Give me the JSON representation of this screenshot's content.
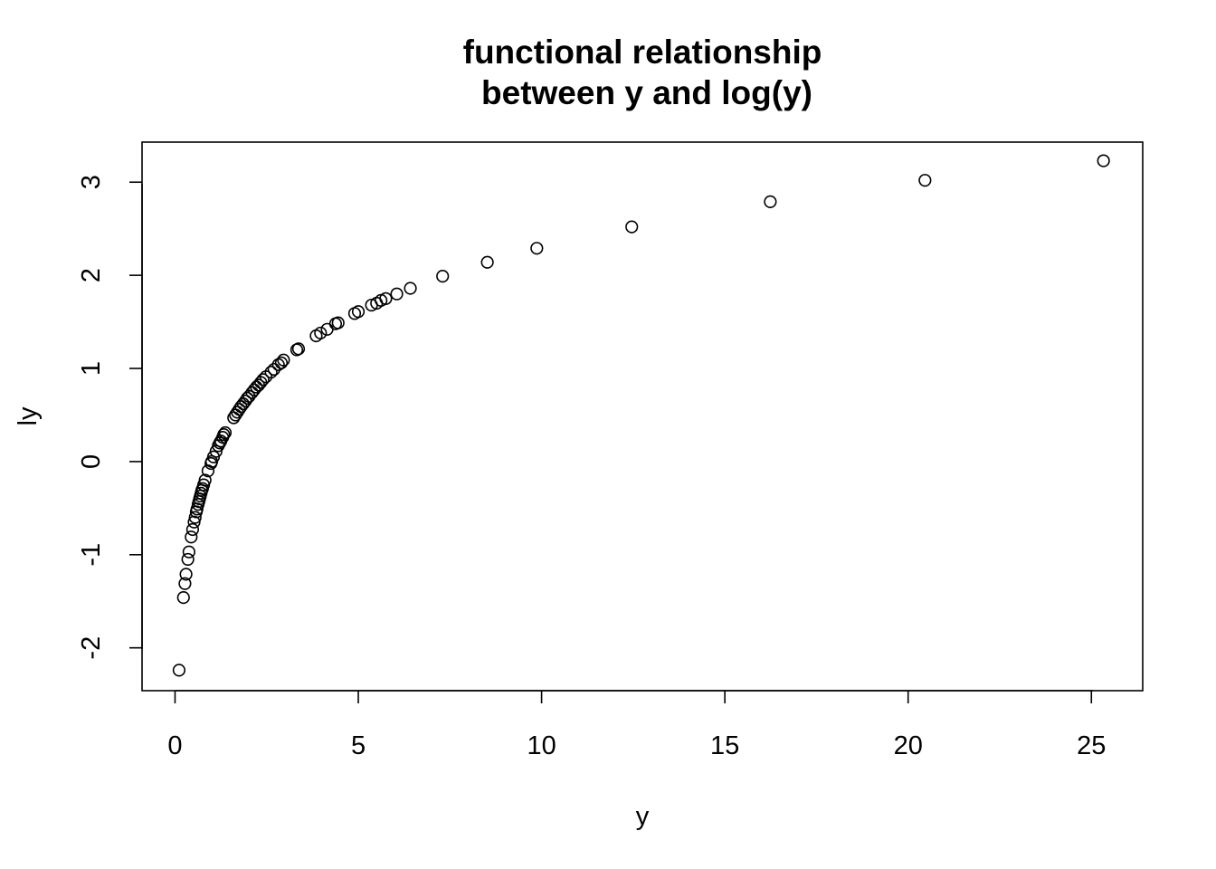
{
  "chart_data": {
    "type": "scatter",
    "title": [
      "functional relationship",
      "between y and log(y)"
    ],
    "xlabel": "y",
    "ylabel": "ly",
    "xlim": [
      -0.9,
      26.4
    ],
    "ylim": [
      -2.46,
      3.43
    ],
    "x_ticks": [
      0,
      5,
      10,
      15,
      20,
      25
    ],
    "y_ticks": [
      -2,
      -1,
      0,
      1,
      2,
      3
    ],
    "grid": false,
    "marker": "open-circle",
    "colors": {
      "point": "#000000",
      "frame": "#000000",
      "background": "#ffffff"
    },
    "points": [
      {
        "x": 0.11,
        "y": -2.24
      },
      {
        "x": 0.23,
        "y": -1.46
      },
      {
        "x": 0.27,
        "y": -1.31
      },
      {
        "x": 0.3,
        "y": -1.21
      },
      {
        "x": 0.35,
        "y": -1.05
      },
      {
        "x": 0.38,
        "y": -0.97
      },
      {
        "x": 0.44,
        "y": -0.81
      },
      {
        "x": 0.48,
        "y": -0.73
      },
      {
        "x": 0.52,
        "y": -0.65
      },
      {
        "x": 0.55,
        "y": -0.6
      },
      {
        "x": 0.58,
        "y": -0.54
      },
      {
        "x": 0.6,
        "y": -0.51
      },
      {
        "x": 0.63,
        "y": -0.46
      },
      {
        "x": 0.65,
        "y": -0.43
      },
      {
        "x": 0.67,
        "y": -0.4
      },
      {
        "x": 0.69,
        "y": -0.37
      },
      {
        "x": 0.71,
        "y": -0.34
      },
      {
        "x": 0.73,
        "y": -0.31
      },
      {
        "x": 0.75,
        "y": -0.29
      },
      {
        "x": 0.78,
        "y": -0.25
      },
      {
        "x": 0.82,
        "y": -0.2
      },
      {
        "x": 0.9,
        "y": -0.1
      },
      {
        "x": 0.98,
        "y": -0.02
      },
      {
        "x": 1.0,
        "y": 0.0
      },
      {
        "x": 1.05,
        "y": 0.05
      },
      {
        "x": 1.12,
        "y": 0.11
      },
      {
        "x": 1.18,
        "y": 0.17
      },
      {
        "x": 1.22,
        "y": 0.2
      },
      {
        "x": 1.25,
        "y": 0.22
      },
      {
        "x": 1.3,
        "y": 0.26
      },
      {
        "x": 1.33,
        "y": 0.29
      },
      {
        "x": 1.37,
        "y": 0.31
      },
      {
        "x": 1.6,
        "y": 0.47
      },
      {
        "x": 1.65,
        "y": 0.5
      },
      {
        "x": 1.7,
        "y": 0.53
      },
      {
        "x": 1.75,
        "y": 0.56
      },
      {
        "x": 1.8,
        "y": 0.59
      },
      {
        "x": 1.86,
        "y": 0.62
      },
      {
        "x": 1.92,
        "y": 0.65
      },
      {
        "x": 1.97,
        "y": 0.68
      },
      {
        "x": 2.02,
        "y": 0.7
      },
      {
        "x": 2.1,
        "y": 0.74
      },
      {
        "x": 2.16,
        "y": 0.77
      },
      {
        "x": 2.22,
        "y": 0.8
      },
      {
        "x": 2.28,
        "y": 0.82
      },
      {
        "x": 2.34,
        "y": 0.85
      },
      {
        "x": 2.4,
        "y": 0.88
      },
      {
        "x": 2.48,
        "y": 0.91
      },
      {
        "x": 2.62,
        "y": 0.96
      },
      {
        "x": 2.7,
        "y": 0.99
      },
      {
        "x": 2.82,
        "y": 1.04
      },
      {
        "x": 2.9,
        "y": 1.06
      },
      {
        "x": 2.96,
        "y": 1.09
      },
      {
        "x": 3.32,
        "y": 1.2
      },
      {
        "x": 3.37,
        "y": 1.21
      },
      {
        "x": 3.85,
        "y": 1.35
      },
      {
        "x": 3.97,
        "y": 1.38
      },
      {
        "x": 4.15,
        "y": 1.42
      },
      {
        "x": 4.38,
        "y": 1.48
      },
      {
        "x": 4.45,
        "y": 1.49
      },
      {
        "x": 4.9,
        "y": 1.59
      },
      {
        "x": 5.0,
        "y": 1.61
      },
      {
        "x": 5.36,
        "y": 1.68
      },
      {
        "x": 5.5,
        "y": 1.7
      },
      {
        "x": 5.62,
        "y": 1.73
      },
      {
        "x": 5.75,
        "y": 1.75
      },
      {
        "x": 6.05,
        "y": 1.8
      },
      {
        "x": 6.42,
        "y": 1.86
      },
      {
        "x": 7.3,
        "y": 1.99
      },
      {
        "x": 8.52,
        "y": 2.14
      },
      {
        "x": 9.87,
        "y": 2.29
      },
      {
        "x": 12.46,
        "y": 2.52
      },
      {
        "x": 16.24,
        "y": 2.79
      },
      {
        "x": 20.46,
        "y": 3.02
      },
      {
        "x": 25.33,
        "y": 3.23
      }
    ]
  }
}
